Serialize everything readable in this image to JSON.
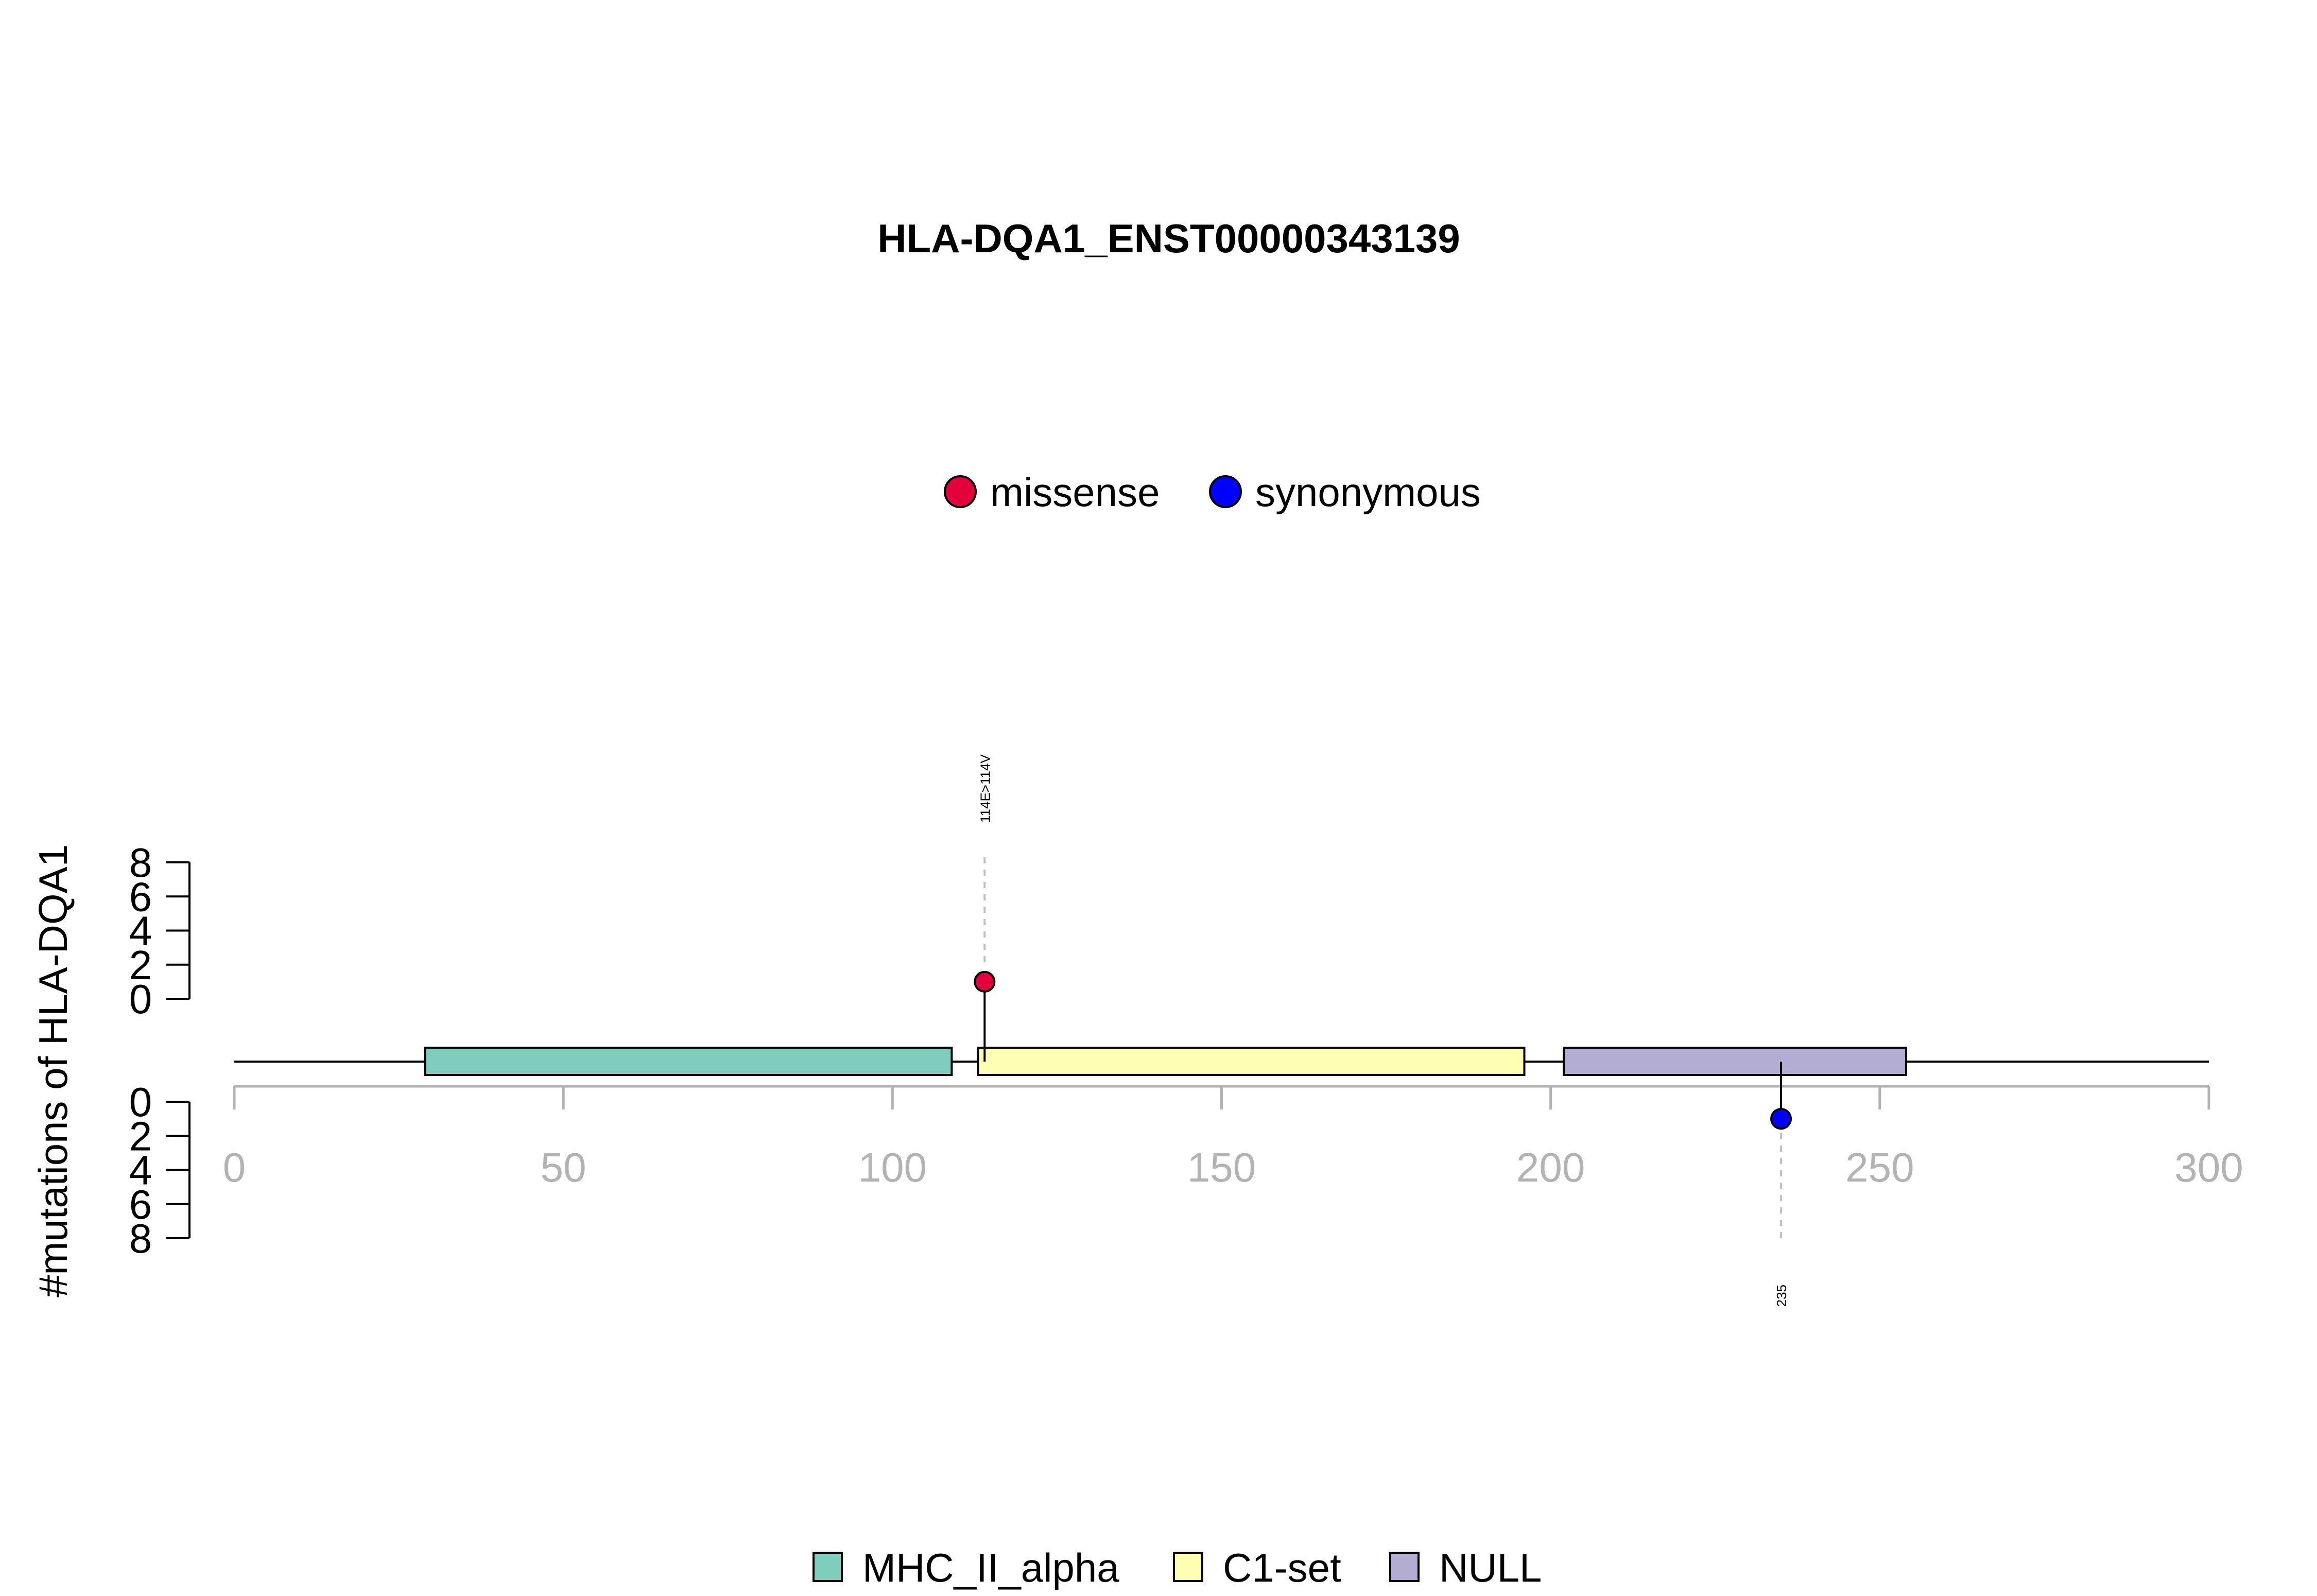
{
  "chart_data": {
    "type": "lollipop",
    "title": "HLA-DQA1_ENST00000343139",
    "ylabel": "#mutations of HLA-DQA1",
    "xlabel": "",
    "xlim": [
      0,
      300
    ],
    "x_ticks": [
      0,
      50,
      100,
      150,
      200,
      250,
      300
    ],
    "y_ticks_upper": [
      0,
      2,
      4,
      6,
      8
    ],
    "y_ticks_lower": [
      0,
      2,
      4,
      6,
      8
    ],
    "ylim": [
      0,
      8
    ],
    "protein_length": 300,
    "mutation_legend": [
      {
        "name": "missense",
        "color": "#E4003A"
      },
      {
        "name": "synonymous",
        "color": "#0000FF"
      }
    ],
    "mutations": [
      {
        "position": 114,
        "count": 1,
        "type": "missense",
        "side": "upper",
        "label": "114E>114V",
        "color": "#E4003A"
      },
      {
        "position": 235,
        "count": 1,
        "type": "synonymous",
        "side": "lower",
        "label": "235",
        "color": "#0000FF"
      }
    ],
    "domains": [
      {
        "name": "MHC_II_alpha",
        "start": 29,
        "end": 109,
        "color": "#7FCDBB"
      },
      {
        "name": "C1-set",
        "start": 113,
        "end": 196,
        "color": "#FFFFB3"
      },
      {
        "name": "NULL",
        "start": 202,
        "end": 254,
        "color": "#B3ADD3"
      }
    ],
    "domain_legend": [
      {
        "name": "MHC_II_alpha",
        "color": "#7FCDBB"
      },
      {
        "name": "C1-set",
        "color": "#FFFFB3"
      },
      {
        "name": "NULL",
        "color": "#B3ADD3"
      }
    ]
  }
}
